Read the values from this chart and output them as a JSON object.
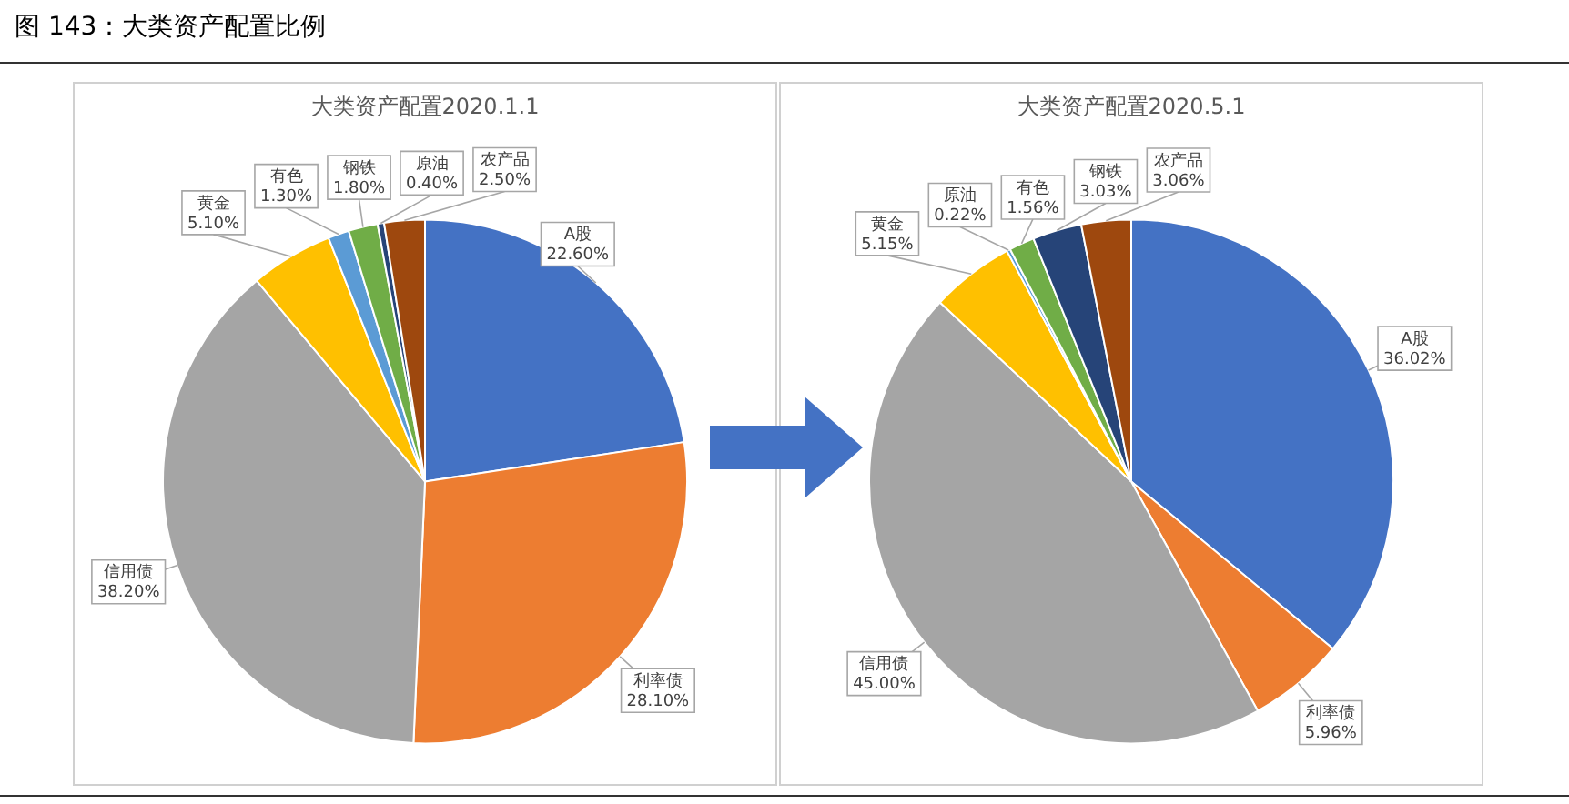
{
  "chart_data": [
    {
      "type": "pie",
      "title": "大类资产配置2020.1.1",
      "annotations": [
        "图 143：大类资产配置比例"
      ],
      "categories": [
        "A股",
        "利率债",
        "信用债",
        "黄金",
        "有色",
        "钢铁",
        "原油",
        "农产品"
      ],
      "values": [
        22.6,
        28.1,
        38.2,
        5.1,
        1.3,
        1.8,
        0.4,
        2.5
      ],
      "value_labels": [
        "22.60%",
        "28.10%",
        "38.20%",
        "5.10%",
        "1.30%",
        "1.80%",
        "0.40%",
        "2.50%"
      ],
      "colors": [
        "#4472c4",
        "#ed7d31",
        "#a5a5a5",
        "#ffc000",
        "#5b9bd5",
        "#70ad47",
        "#264478",
        "#9e480e"
      ],
      "legend": false
    },
    {
      "type": "pie",
      "title": "大类资产配置2020.5.1",
      "categories": [
        "A股",
        "利率债",
        "信用债",
        "黄金",
        "原油",
        "有色",
        "钢铁",
        "农产品"
      ],
      "values": [
        36.02,
        5.96,
        45.0,
        5.15,
        0.22,
        1.56,
        3.03,
        3.06
      ],
      "value_labels": [
        "36.02%",
        "5.96%",
        "45.00%",
        "5.15%",
        "0.22%",
        "1.56%",
        "3.03%",
        "3.06%"
      ],
      "colors": [
        "#4472c4",
        "#ed7d31",
        "#a5a5a5",
        "#ffc000",
        "#5b9bd5",
        "#70ad47",
        "#264478",
        "#9e480e"
      ],
      "legend": false
    }
  ]
}
